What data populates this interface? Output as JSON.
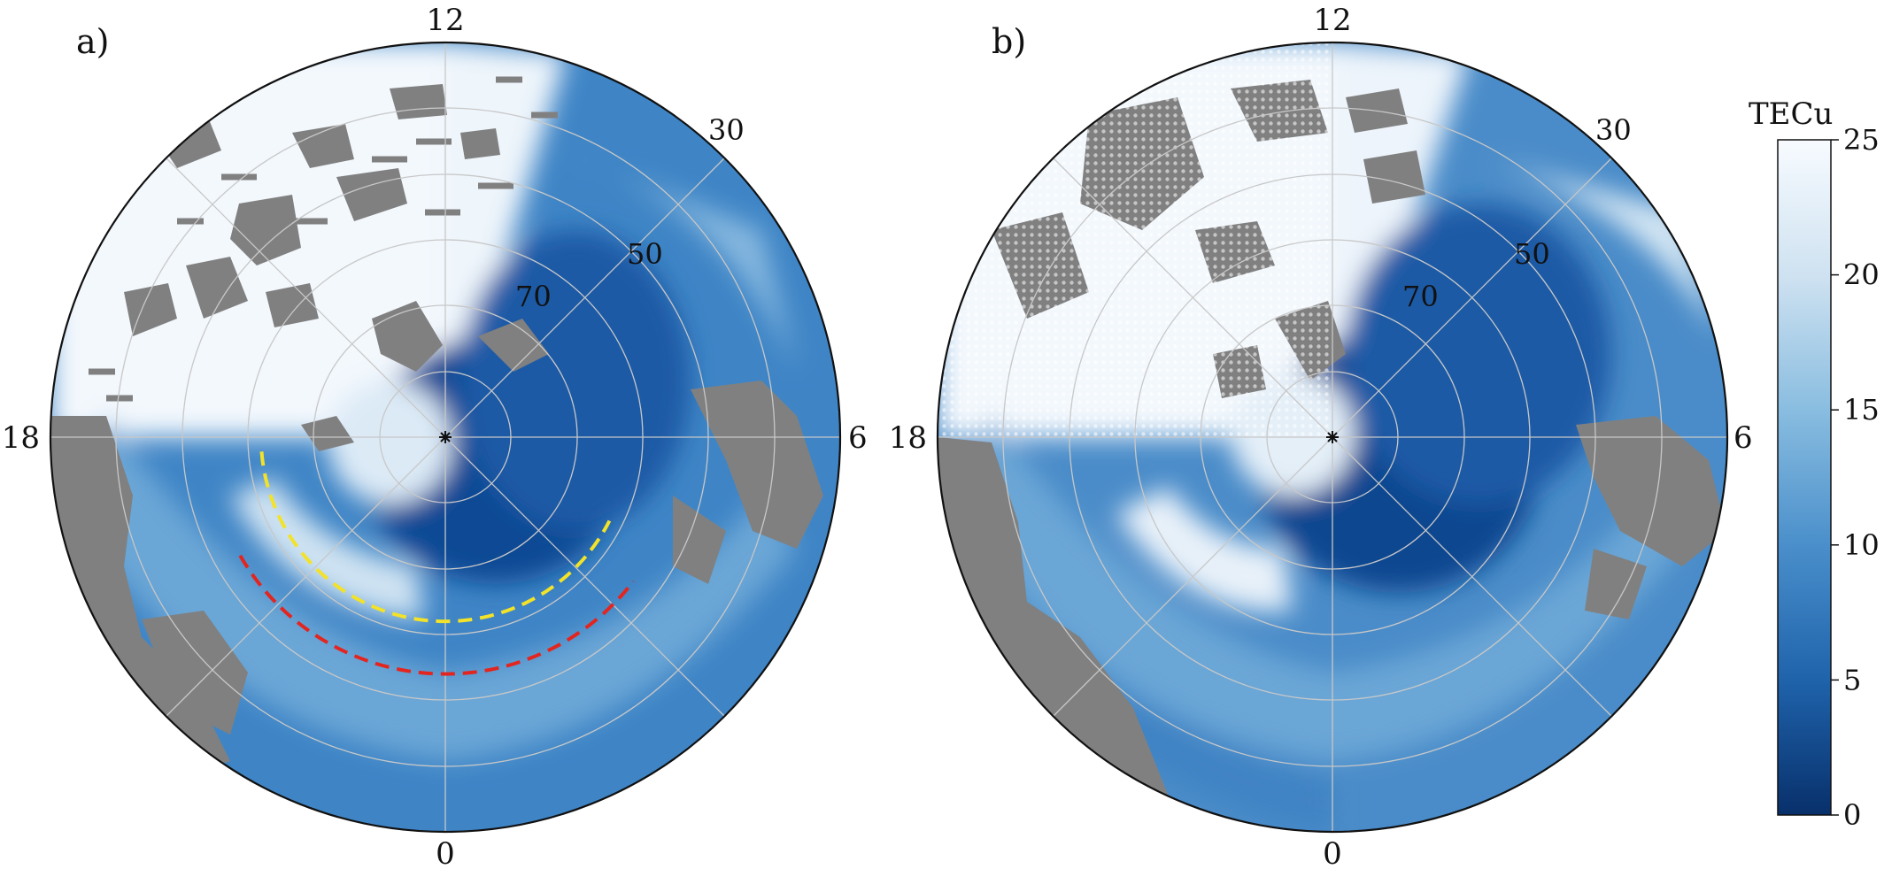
{
  "panels": [
    {
      "label": "a)",
      "mlt_labels": {
        "top": "12",
        "right": "6",
        "bottom": "0",
        "left": "18"
      },
      "lat_labels": [
        "30",
        "50",
        "70"
      ],
      "dashed_curves": [
        {
          "color": "#f2e22a",
          "lat_deg": 62,
          "mlt_range": [
            18.3,
            4.2
          ]
        },
        {
          "color": "#e3251f",
          "lat_deg": 54,
          "mlt_range": [
            20.0,
            3.5
          ]
        }
      ]
    },
    {
      "label": "b)",
      "mlt_labels": {
        "top": "12",
        "right": "6",
        "bottom": "0",
        "left": "18"
      },
      "lat_labels": [
        "30",
        "50",
        "70"
      ]
    }
  ],
  "colorbar": {
    "title": "TECu",
    "min": 0,
    "max": 25,
    "ticks": [
      "0",
      "5",
      "10",
      "15",
      "20",
      "25"
    ],
    "colors": [
      "#08306b",
      "#1f63ab",
      "#4a8fcb",
      "#89bde0",
      "#cfe2f1",
      "#f7fbff"
    ]
  },
  "colors": {
    "no_data": "#808080",
    "grid": "#c8c8c8"
  }
}
